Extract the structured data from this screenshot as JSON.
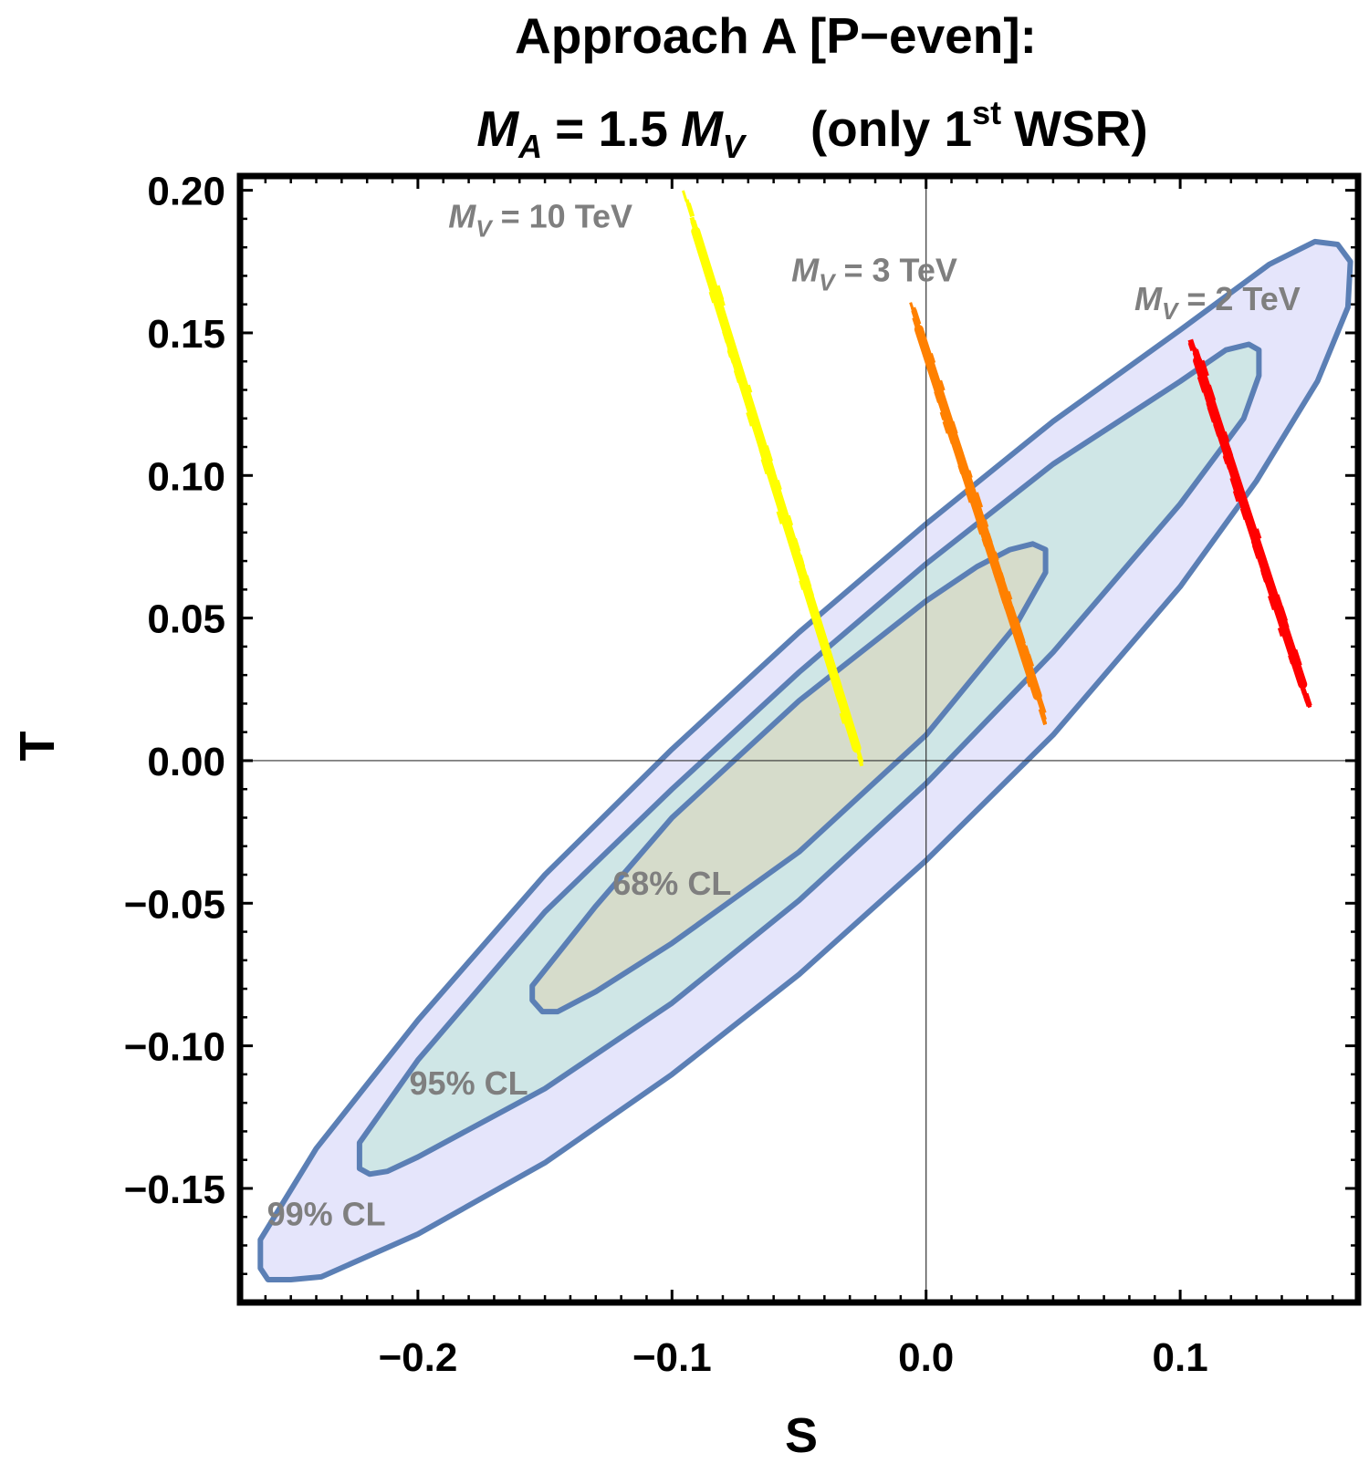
{
  "chart_data": {
    "type": "contour",
    "title": {
      "line1": "Approach A [P−even]:",
      "line2": {
        "lhs_symbol": "M",
        "lhs_sub": "A",
        "eq_text": "= 1.5",
        "rhs_symbol": "M",
        "rhs_sub": "V",
        "note_prefix": "(only 1",
        "note_sup": "st",
        "note_suffix": "WSR)"
      }
    },
    "xlabel": "S",
    "ylabel": "T",
    "xlim": [
      -0.27,
      0.17
    ],
    "ylim": [
      -0.19,
      0.205
    ],
    "x_ticks": [
      {
        "value": -0.2,
        "label": "−0.2"
      },
      {
        "value": -0.1,
        "label": "−0.1"
      },
      {
        "value": 0.0,
        "label": "0.0"
      },
      {
        "value": 0.1,
        "label": "0.1"
      }
    ],
    "y_ticks": [
      {
        "value": 0.2,
        "label": "0.20"
      },
      {
        "value": 0.15,
        "label": "0.15"
      },
      {
        "value": 0.1,
        "label": "0.10"
      },
      {
        "value": 0.05,
        "label": "0.05"
      },
      {
        "value": 0.0,
        "label": "0.00"
      },
      {
        "value": -0.05,
        "label": "−0.05"
      },
      {
        "value": -0.1,
        "label": "−0.10"
      },
      {
        "value": -0.15,
        "label": "−0.15"
      }
    ],
    "outline_color": "#5b7fb5",
    "contours": [
      {
        "label": "99% CL",
        "fill": "#e5e5fb",
        "label_pos": [
          -0.236,
          -0.163
        ],
        "polygon": [
          [
            -0.262,
            -0.178
          ],
          [
            -0.262,
            -0.168
          ],
          [
            -0.24,
            -0.136
          ],
          [
            -0.2,
            -0.091
          ],
          [
            -0.15,
            -0.04
          ],
          [
            -0.1,
            0.004
          ],
          [
            -0.05,
            0.045
          ],
          [
            0.0,
            0.083
          ],
          [
            0.05,
            0.119
          ],
          [
            0.1,
            0.151
          ],
          [
            0.135,
            0.174
          ],
          [
            0.153,
            0.182
          ],
          [
            0.162,
            0.181
          ],
          [
            0.167,
            0.175
          ],
          [
            0.166,
            0.159
          ],
          [
            0.154,
            0.133
          ],
          [
            0.13,
            0.098
          ],
          [
            0.1,
            0.061
          ],
          [
            0.05,
            0.009
          ],
          [
            0.0,
            -0.035
          ],
          [
            -0.05,
            -0.075
          ],
          [
            -0.1,
            -0.11
          ],
          [
            -0.15,
            -0.141
          ],
          [
            -0.2,
            -0.166
          ],
          [
            -0.238,
            -0.181
          ],
          [
            -0.25,
            -0.182
          ],
          [
            -0.259,
            -0.182
          ]
        ]
      },
      {
        "label": "95% CL",
        "fill": "#cfe6e6",
        "label_pos": [
          -0.18,
          -0.117
        ],
        "polygon": [
          [
            -0.223,
            -0.143
          ],
          [
            -0.223,
            -0.134
          ],
          [
            -0.2,
            -0.105
          ],
          [
            -0.15,
            -0.053
          ],
          [
            -0.1,
            -0.01
          ],
          [
            -0.05,
            0.031
          ],
          [
            0.0,
            0.069
          ],
          [
            0.05,
            0.104
          ],
          [
            0.1,
            0.133
          ],
          [
            0.118,
            0.144
          ],
          [
            0.127,
            0.146
          ],
          [
            0.131,
            0.144
          ],
          [
            0.131,
            0.135
          ],
          [
            0.125,
            0.12
          ],
          [
            0.1,
            0.09
          ],
          [
            0.05,
            0.038
          ],
          [
            0.0,
            -0.008
          ],
          [
            -0.05,
            -0.049
          ],
          [
            -0.1,
            -0.085
          ],
          [
            -0.15,
            -0.115
          ],
          [
            -0.2,
            -0.139
          ],
          [
            -0.212,
            -0.144
          ],
          [
            -0.219,
            -0.145
          ]
        ]
      },
      {
        "label": "68% CL",
        "fill": "#d6dccb",
        "label_pos": [
          -0.1,
          -0.047
        ],
        "polygon": [
          [
            -0.155,
            -0.084
          ],
          [
            -0.155,
            -0.079
          ],
          [
            -0.13,
            -0.051
          ],
          [
            -0.1,
            -0.02
          ],
          [
            -0.05,
            0.021
          ],
          [
            0.0,
            0.056
          ],
          [
            0.02,
            0.068
          ],
          [
            0.033,
            0.074
          ],
          [
            0.042,
            0.076
          ],
          [
            0.047,
            0.074
          ],
          [
            0.047,
            0.066
          ],
          [
            0.035,
            0.047
          ],
          [
            0.0,
            0.009
          ],
          [
            -0.05,
            -0.032
          ],
          [
            -0.1,
            -0.064
          ],
          [
            -0.13,
            -0.081
          ],
          [
            -0.145,
            -0.088
          ],
          [
            -0.151,
            -0.088
          ]
        ]
      }
    ],
    "series": [
      {
        "name": "M_V = 10 TeV",
        "mv_symbol": "M",
        "mv_sub": "V",
        "mv_value": "= 10 TeV",
        "color": "#ffff00",
        "start": [
          -0.095,
          0.198
        ],
        "end": [
          -0.023,
          -0.008
        ],
        "label_pos": [
          -0.188,
          0.187
        ]
      },
      {
        "name": "M_V = 3 TeV",
        "mv_symbol": "M",
        "mv_sub": "V",
        "mv_value": "= 3 TeV",
        "color": "#ff8000",
        "start": [
          -0.006,
          0.16
        ],
        "end": [
          0.047,
          0.014
        ],
        "label_pos": [
          -0.053,
          0.168
        ]
      },
      {
        "name": "M_V = 2 TeV",
        "mv_symbol": "M",
        "mv_sub": "V",
        "mv_value": "= 2 TeV",
        "color": "#ff0000",
        "start": [
          0.104,
          0.148
        ],
        "end": [
          0.151,
          0.019
        ],
        "label_pos": [
          0.082,
          0.158
        ]
      }
    ]
  }
}
